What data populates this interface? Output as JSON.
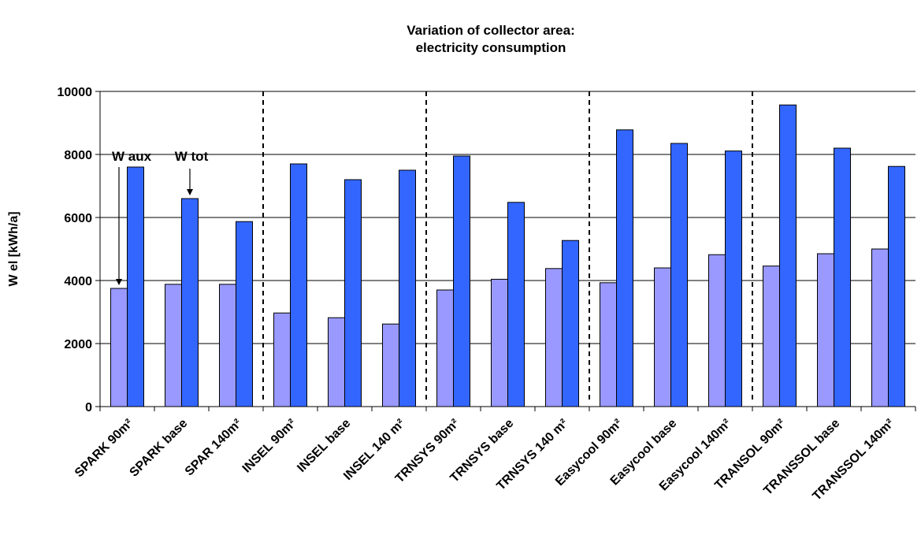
{
  "chart_data": {
    "type": "bar",
    "title_lines": [
      "Variation of collector area:",
      "electricity consumption"
    ],
    "ylabel": "W el [kWh/a]",
    "xlabel": "",
    "ylim": [
      0,
      10000
    ],
    "yticks": [
      "0",
      "2000",
      "4000",
      "6000",
      "8000",
      "10000"
    ],
    "grid": true,
    "categories": [
      "SPARK 90m²",
      "SPARK base",
      "SPAR 140m²",
      "INSEL 90m²",
      "INSEL base",
      "INSEL 140 m²",
      "TRNSYS 90m²",
      "TRNSYS base",
      "TRNSYS 140 m²",
      "Easycool 90m²",
      "Easycool base",
      "Easycool 140m²",
      "TRANSOL 90m²",
      "TRANSSOL base",
      "TRANSSOL 140m²"
    ],
    "series": [
      {
        "values": [
          3750,
          3880,
          3880,
          2970,
          2820,
          2620,
          3700,
          4040,
          4380,
          3930,
          4400,
          4820,
          4460,
          4850,
          5000
        ],
        "color": "#9999ff"
      },
      {
        "values": [
          7600,
          6600,
          5870,
          7700,
          7200,
          7500,
          7950,
          6480,
          5270,
          8780,
          8350,
          8110,
          9570,
          8200,
          7620
        ],
        "color": "#3366ff"
      }
    ],
    "separators_after_category": [
      2,
      5,
      8,
      11
    ],
    "annotations": [
      {
        "text": "W aux",
        "series": 0,
        "category": 0
      },
      {
        "text": "W tot",
        "series": 1,
        "category": 1
      }
    ]
  }
}
